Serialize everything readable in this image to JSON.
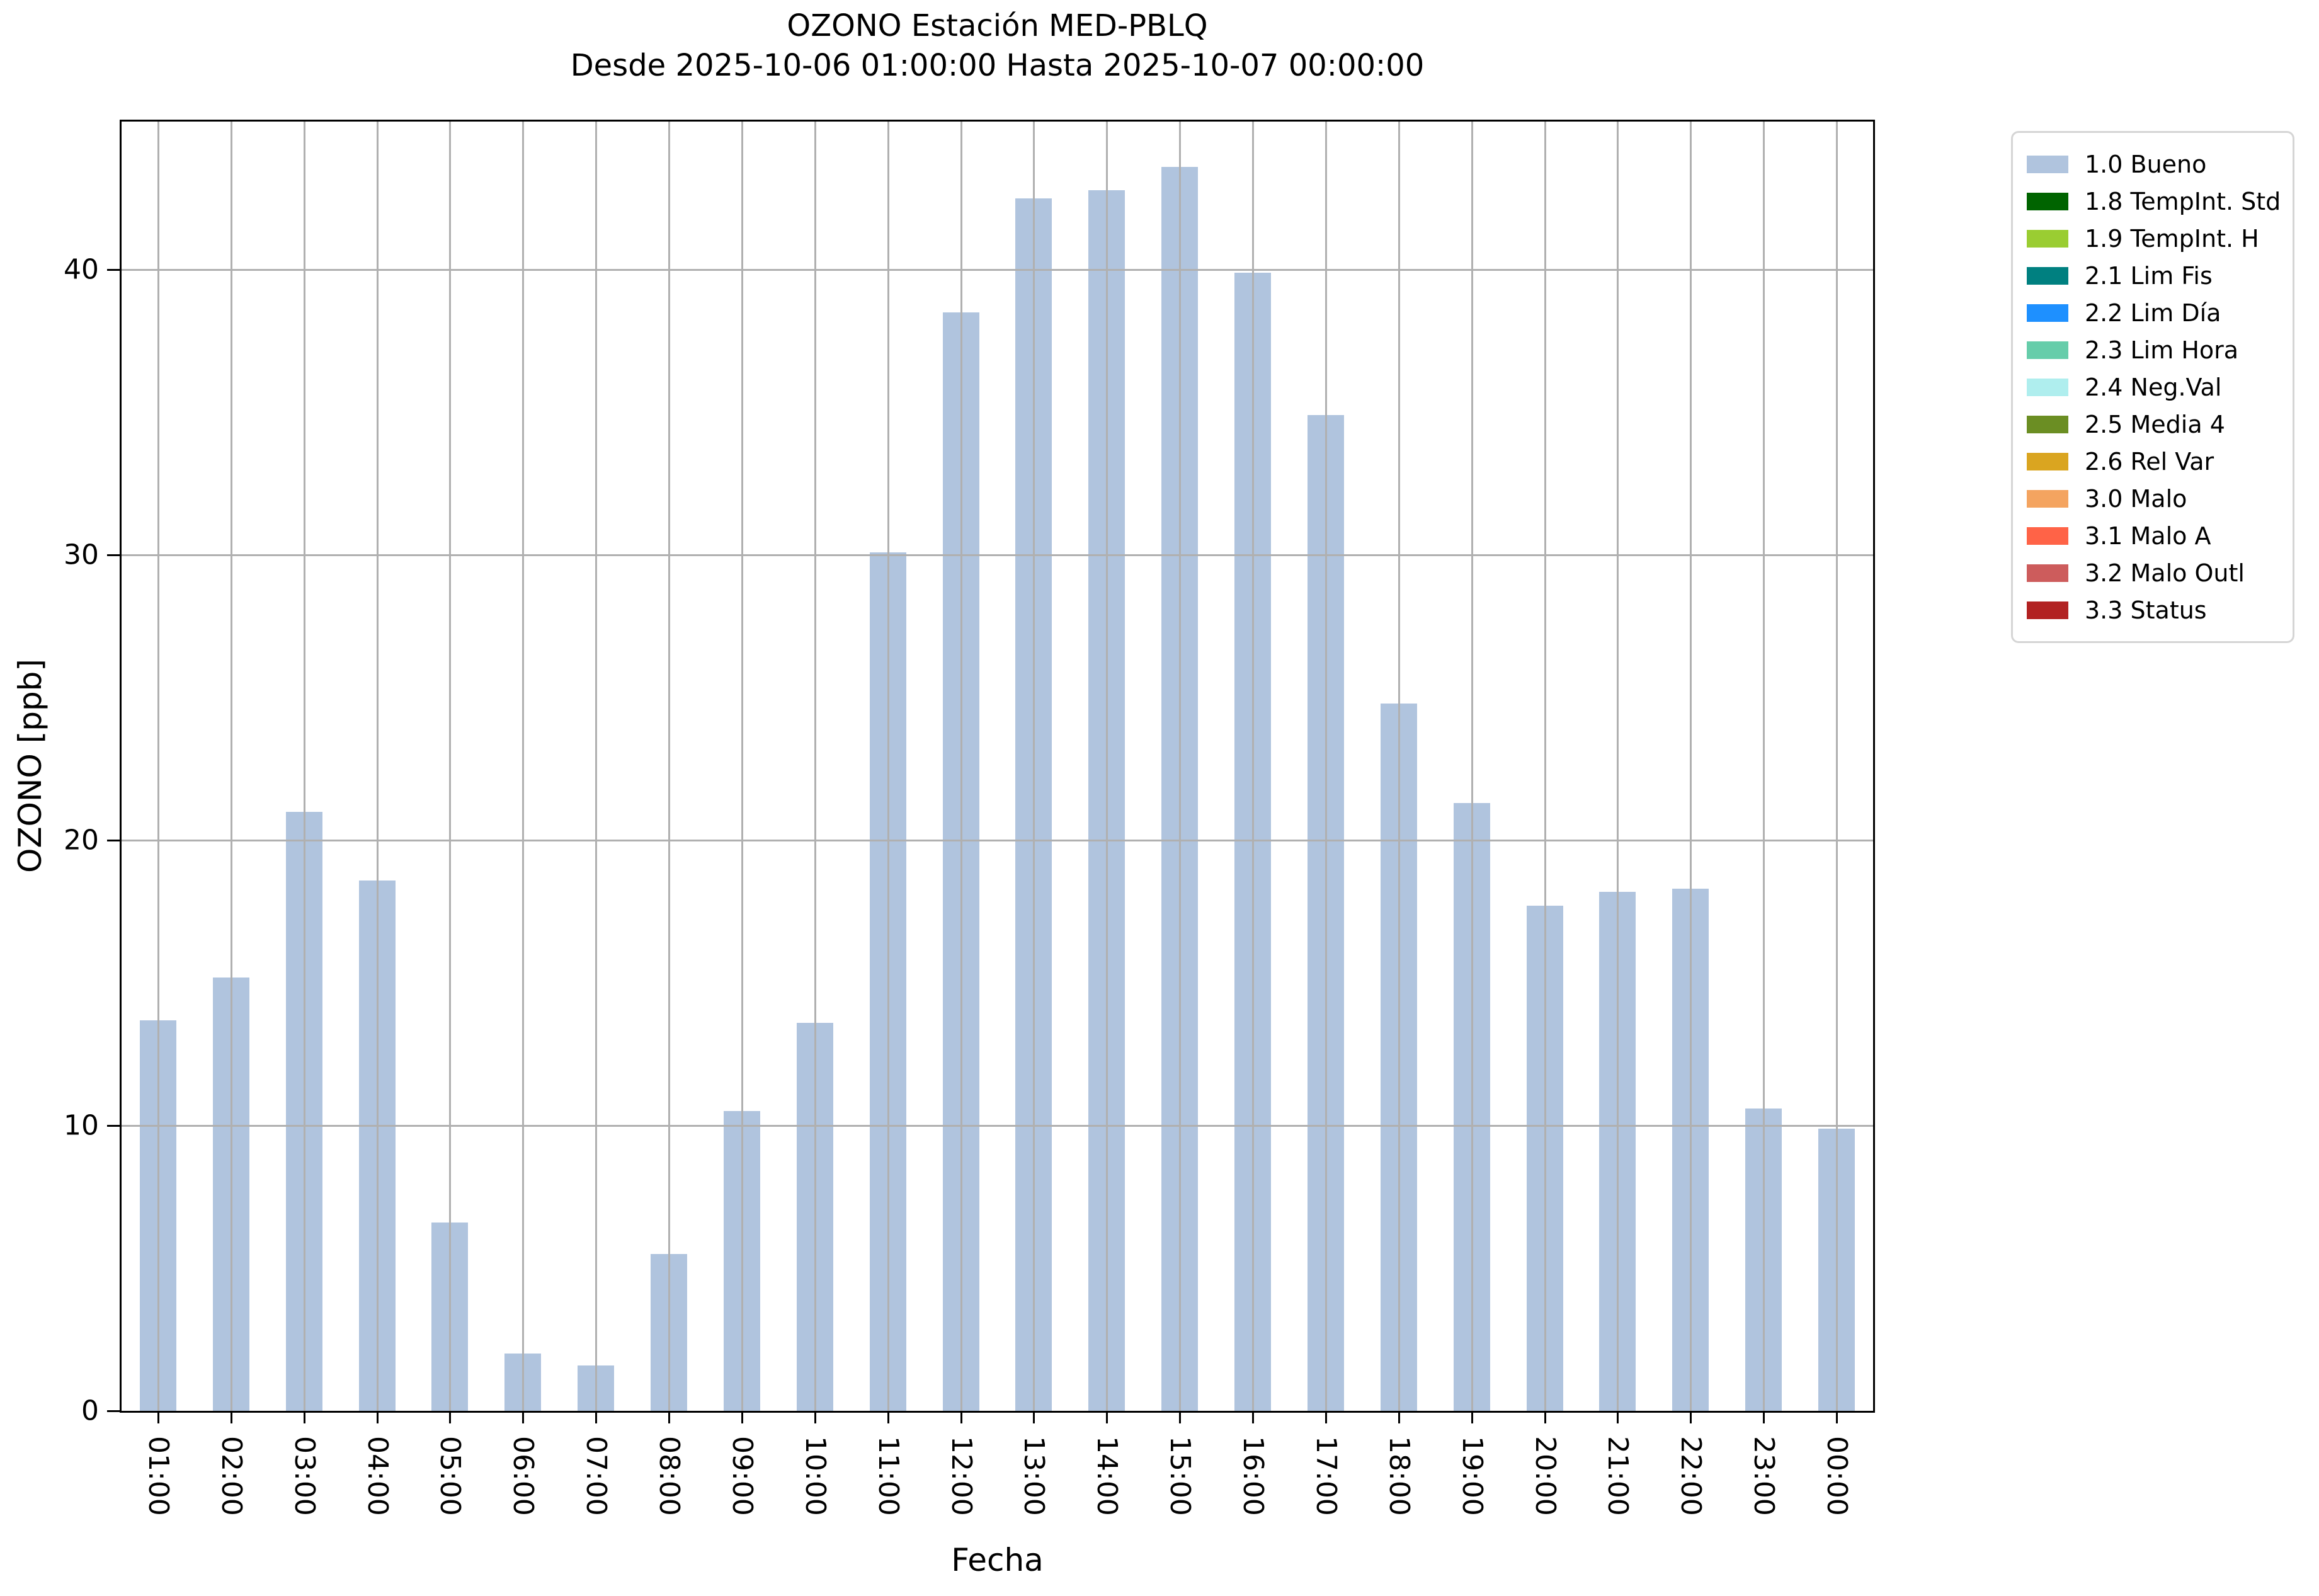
{
  "title": {
    "line1": "OZONO Estación MED-PBLQ",
    "line2": "Desde 2025-10-06 01:00:00 Hasta 2025-10-07 00:00:00"
  },
  "chart_data": {
    "type": "bar",
    "title": "OZONO Estación MED-PBLQ",
    "subtitle": "Desde 2025-10-06 01:00:00 Hasta 2025-10-07 00:00:00",
    "xlabel": "Fecha",
    "ylabel": "OZONO [ppb]",
    "categories": [
      "01:00",
      "02:00",
      "03:00",
      "04:00",
      "05:00",
      "06:00",
      "07:00",
      "08:00",
      "09:00",
      "10:00",
      "11:00",
      "12:00",
      "13:00",
      "14:00",
      "15:00",
      "16:00",
      "17:00",
      "18:00",
      "19:00",
      "20:00",
      "21:00",
      "22:00",
      "23:00",
      "00:00"
    ],
    "values": [
      13.7,
      15.2,
      21.0,
      18.6,
      6.6,
      2.0,
      1.6,
      5.5,
      10.5,
      13.6,
      30.1,
      38.5,
      42.5,
      42.8,
      43.6,
      39.9,
      34.9,
      24.8,
      21.3,
      17.7,
      18.2,
      18.3,
      10.6,
      9.9
    ],
    "ylim": [
      0,
      45.2
    ],
    "yticks": [
      0,
      10,
      20,
      30,
      40
    ],
    "grid": true,
    "bar_color": "#b0c4de",
    "grid_color": "#b0b0b0",
    "legend_position": "outside-right",
    "legend": [
      {
        "label": "1.0 Bueno",
        "color": "#b0c4de"
      },
      {
        "label": "1.8 TempInt. Std",
        "color": "#006400"
      },
      {
        "label": "1.9 TempInt. H",
        "color": "#9acd32"
      },
      {
        "label": "2.1 Lim Fis",
        "color": "#008080"
      },
      {
        "label": "2.2 Lim Día",
        "color": "#1e90ff"
      },
      {
        "label": "2.3 Lim Hora",
        "color": "#66cdaa"
      },
      {
        "label": "2.4 Neg.Val",
        "color": "#afeeee"
      },
      {
        "label": "2.5 Media 4",
        "color": "#6b8e23"
      },
      {
        "label": "2.6 Rel Var",
        "color": "#daa520"
      },
      {
        "label": "3.0 Malo",
        "color": "#f4a460"
      },
      {
        "label": "3.1 Malo A",
        "color": "#ff6347"
      },
      {
        "label": "3.2 Malo Outl",
        "color": "#cd5c5c"
      },
      {
        "label": "3.3 Status",
        "color": "#b22222"
      }
    ]
  }
}
